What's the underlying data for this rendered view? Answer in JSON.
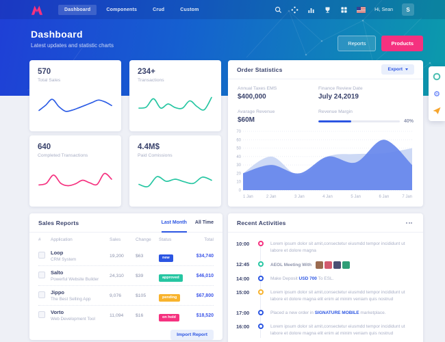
{
  "navbar": {
    "menu": [
      {
        "label": "Dashboard",
        "active": true
      },
      {
        "label": "Components",
        "active": false
      },
      {
        "label": "Crud",
        "active": false
      },
      {
        "label": "Custom",
        "active": false
      }
    ],
    "greeting": "Hi, Sean",
    "avatar_initial": "S"
  },
  "hero": {
    "title": "Dashboard",
    "subtitle": "Latest updates and statistic charts",
    "reports_label": "Reports",
    "products_label": "Products"
  },
  "stat_cards": [
    {
      "value": "570",
      "label": "Total Sales",
      "color": "#2c5ce5",
      "points": [
        25,
        45,
        68,
        40,
        22,
        26,
        35,
        45,
        55,
        65,
        58,
        44
      ]
    },
    {
      "value": "234+",
      "label": "Transactions",
      "color": "#26c6a2",
      "points": [
        34,
        38,
        70,
        34,
        50,
        36,
        34,
        62,
        40,
        28,
        75
      ]
    },
    {
      "value": "640",
      "label": "Completed Transactions",
      "color": "#f5317f",
      "points": [
        28,
        34,
        66,
        34,
        25,
        32,
        46,
        36,
        30,
        72,
        50
      ]
    },
    {
      "value": "4.4M$",
      "label": "Paid Comissions",
      "color": "#26c6a2",
      "points": [
        30,
        22,
        60,
        42,
        50,
        40,
        34,
        58,
        46
      ]
    }
  ],
  "order_statistics": {
    "title": "Order Statistics",
    "export_label": "Export",
    "fields": [
      {
        "label": "Annual Taxes EMS",
        "value": "$400,000"
      },
      {
        "label": "Finance Review Date",
        "value": "July 24,2019"
      },
      {
        "label": "Avarage Revenue",
        "value": "$60M"
      },
      {
        "label": "Revenue Margin",
        "value": "40%"
      }
    ],
    "chart": {
      "type": "area",
      "x": [
        "1 Jan",
        "2 Jan",
        "3 Jan",
        "4 Jan",
        "5 Jan",
        "6 Jan",
        "7 Jan"
      ],
      "yticks": [
        0,
        10,
        20,
        30,
        40,
        50,
        60,
        70
      ],
      "ymax": 70,
      "series": [
        {
          "name": "previous",
          "fill": "#cdd9f5",
          "values": [
            20,
            40,
            17,
            40,
            43,
            44,
            50
          ]
        },
        {
          "name": "current",
          "fill": "#6687eb",
          "values": [
            20,
            30,
            20,
            40,
            33,
            60,
            30
          ]
        }
      ]
    }
  },
  "sales_reports": {
    "title": "Sales Reports",
    "tabs": [
      {
        "label": "Last Month",
        "active": true
      },
      {
        "label": "All Time",
        "active": false
      }
    ],
    "columns": [
      "#",
      "Application",
      "Sales",
      "Change",
      "Status",
      "Total"
    ],
    "rows": [
      {
        "app": "Loop",
        "desc": "CRM System",
        "sales": "19,200",
        "change": "$63",
        "status": "new",
        "status_color": "#2b55e2",
        "total": "$34,740"
      },
      {
        "app": "Salto",
        "desc": "Powerful Website Builder",
        "sales": "24,310",
        "change": "$39",
        "status": "approved",
        "status_color": "#26c6a2",
        "total": "$46,010"
      },
      {
        "app": "Jippo",
        "desc": "The Best Selling App",
        "sales": "9,076",
        "change": "$105",
        "status": "pending",
        "status_color": "#f8b32d",
        "total": "$67,800"
      },
      {
        "app": "Vorto",
        "desc": "Web Development Tool",
        "sales": "11,094",
        "change": "$16",
        "status": "on hold",
        "status_color": "#f5317f",
        "total": "$18,520"
      }
    ],
    "import_label": "Import Report"
  },
  "recent_activities": {
    "title": "Recent Activities",
    "items": [
      {
        "time": "10:00",
        "dot": "#f5317f",
        "text": "Lorem ipsum dolor sit amit,consectetur eiusmdd tempor incididunt ut labore et dolore magna"
      },
      {
        "time": "12:45",
        "dot": "#26c6a2",
        "text": "AEOL Meeting With",
        "avatars": [
          "#9a6a4f",
          "#d25a6e",
          "#4a4f73",
          "#2f9e77"
        ]
      },
      {
        "time": "14:00",
        "dot": "#2b55e2",
        "pre": "Make Deposit ",
        "bold": "USD 700",
        "post": " To ESL."
      },
      {
        "time": "15:00",
        "dot": "#f8b32d",
        "text": "Lorem ipsum dolor sit amit,consectetur eiusmdd tempor incididunt ut labore et dolore magna elit enim at minim veniam quis nostrud"
      },
      {
        "time": "17:00",
        "dot": "#2b55e2",
        "pre": "Placed a new order in ",
        "bold": "SIGNATURE MOBILE",
        "post": " marketplace."
      },
      {
        "time": "16:00",
        "dot": "#2b55e2",
        "text": "Lorem ipsum dolor sit amit,consectetur eiusmdd tempor incididunt ut labore et dolore magna elit enim at minim veniam quis nostrud"
      }
    ]
  }
}
